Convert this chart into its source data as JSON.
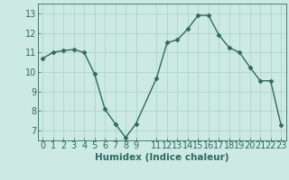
{
  "x": [
    0,
    1,
    2,
    3,
    4,
    5,
    6,
    7,
    8,
    9,
    11,
    12,
    13,
    14,
    15,
    16,
    17,
    18,
    19,
    20,
    21,
    22,
    23
  ],
  "y": [
    10.7,
    11.0,
    11.1,
    11.15,
    11.0,
    9.9,
    8.1,
    7.35,
    6.65,
    7.35,
    9.7,
    11.5,
    11.65,
    12.2,
    12.9,
    12.9,
    11.9,
    11.25,
    11.0,
    10.25,
    9.55,
    9.55,
    7.3
  ],
  "line_color": "#2d6b5e",
  "marker": "D",
  "marker_size": 2.5,
  "background_color": "#cce9e4",
  "grid_color": "#b0d4ce",
  "xlabel": "Humidex (Indice chaleur)",
  "ylim": [
    6.5,
    13.5
  ],
  "xlim": [
    -0.5,
    23.5
  ],
  "xticks": [
    0,
    1,
    2,
    3,
    4,
    5,
    6,
    7,
    8,
    9,
    11,
    12,
    13,
    14,
    15,
    16,
    17,
    18,
    19,
    20,
    21,
    22,
    23
  ],
  "yticks": [
    7,
    8,
    9,
    10,
    11,
    12,
    13
  ],
  "tick_color": "#2d6b5e",
  "label_color": "#2d6b5e",
  "xlabel_fontsize": 7.5,
  "tick_fontsize": 7,
  "linewidth": 1.0
}
